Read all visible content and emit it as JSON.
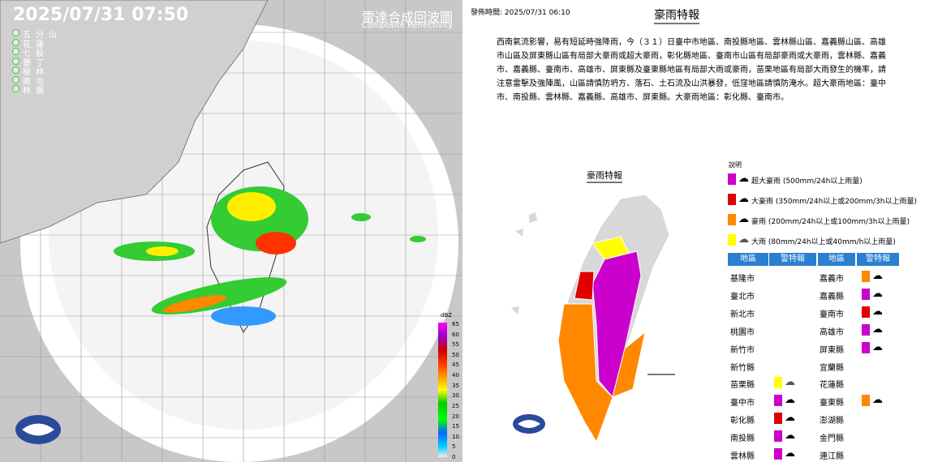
{
  "radar": {
    "timestamp": "2025/07/31  07:50",
    "title": "雷達合成回波圖",
    "subtitle": "Composite Reflectivity",
    "stations": [
      "五分山",
      "花蓮",
      "七股",
      "墾丁",
      "樹林",
      "南屯",
      "林園"
    ],
    "colorbar": {
      "unit": "dBZ",
      "ticks": [
        65,
        60,
        55,
        50,
        45,
        40,
        35,
        30,
        25,
        20,
        15,
        10,
        5,
        0
      ]
    }
  },
  "warning": {
    "issued": "發佈時間: 2025/07/31 06:10",
    "title": "豪雨特報",
    "body": "西南氣流影響，易有短延時強降雨，今（３１）日臺中市地區、南投縣地區、雲林縣山區、嘉義縣山區、高雄市山區及屏東縣山區有局部大豪雨或超大豪雨，彰化縣地區、臺南市山區有局部豪雨或大豪雨，雲林縣、嘉義市、嘉義縣、臺南市、高雄市、屏東縣及臺東縣地區有局部大雨或豪雨，苗栗地區有局部大雨發生的機率，請注意雷擊及強陣風，山區請慎防坍方、落石、土石流及山洪暴發，低窪地區請慎防淹水。超大豪雨地區：臺中市、南投縣、雲林縣、嘉義縣、高雄市、屏東縣。大豪雨地區：彰化縣、臺南市。",
    "map_title": "豪雨特報",
    "legend_title": "說明",
    "legend": [
      {
        "label": "超大豪雨 (500mm/24h以上雨量)",
        "color": "#cc00cc"
      },
      {
        "label": "大豪雨 (350mm/24h以上或200mm/3h以上雨量)",
        "color": "#e00000"
      },
      {
        "label": "豪雨 (200mm/24h以上或100mm/3h以上雨量)",
        "color": "#ff8800"
      },
      {
        "label": "大雨 (80mm/24h以上或40mm/h以上雨量)",
        "color": "#ffff00"
      }
    ],
    "table_headers": [
      "地區",
      "警特報",
      "地區",
      "警特報"
    ],
    "left_rows": [
      {
        "area": "基隆市"
      },
      {
        "area": "臺北市"
      },
      {
        "area": "新北市"
      },
      {
        "area": "桃園市"
      },
      {
        "area": "新竹市"
      },
      {
        "area": "新竹縣"
      },
      {
        "area": "苗栗縣",
        "color": "#ffff00"
      },
      {
        "area": "臺中市",
        "color": "#cc00cc"
      },
      {
        "area": "彰化縣",
        "color": "#e00000"
      },
      {
        "area": "南投縣",
        "color": "#cc00cc"
      },
      {
        "area": "雲林縣",
        "color": "#cc00cc"
      }
    ],
    "right_rows": [
      {
        "area": "嘉義市",
        "color": "#ff8800"
      },
      {
        "area": "嘉義縣",
        "color": "#cc00cc"
      },
      {
        "area": "臺南市",
        "color": "#e00000"
      },
      {
        "area": "高雄市",
        "color": "#cc00cc"
      },
      {
        "area": "屏東縣",
        "color": "#cc00cc"
      },
      {
        "area": "宜蘭縣"
      },
      {
        "area": "花蓮縣"
      },
      {
        "area": "臺東縣",
        "color": "#ff8800"
      },
      {
        "area": "澎湖縣"
      },
      {
        "area": "金門縣"
      },
      {
        "area": "連江縣"
      }
    ]
  }
}
